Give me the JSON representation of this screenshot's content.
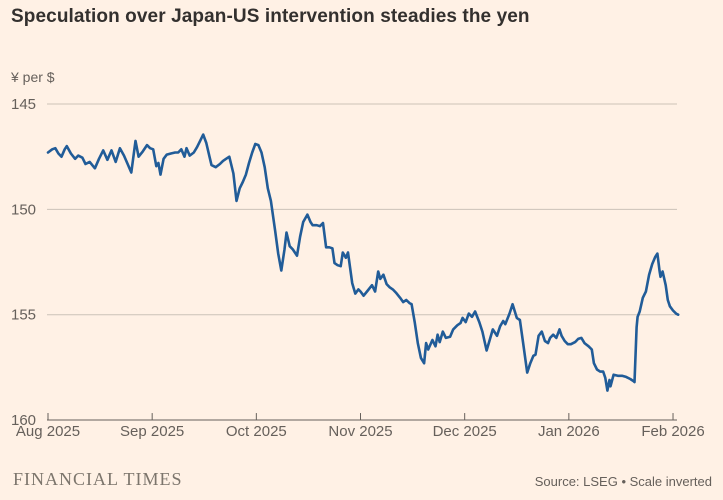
{
  "page": {
    "background": "#FFF1E5"
  },
  "header": {
    "title": "Speculation over Japan-US intervention steadies the yen"
  },
  "footer": {
    "brand": "FINANCIAL TIMES",
    "source": "Source: LSEG • Scale inverted"
  },
  "colors": {
    "background": "#FFF1E5",
    "line": "#215C98",
    "gridline": "#CCC2B8",
    "axis": "#66605B",
    "tick_label": "#66605B",
    "title": "#33302E"
  },
  "chart_data": {
    "type": "line",
    "title": "Speculation over Japan-US intervention steadies the yen",
    "unit_label": "¥ per $",
    "xlabel": "",
    "ylabel": "¥ per $",
    "x_tick_labels": [
      "Aug 2025",
      "Sep 2025",
      "Oct 2025",
      "Nov 2025",
      "Dec 2025",
      "Jan 2026",
      "Feb 2026"
    ],
    "y_ticks": [
      145,
      150,
      155,
      160
    ],
    "ylim": [
      145,
      160
    ],
    "y_inverted": true,
    "xlim_months": [
      0,
      6.05
    ],
    "grid": "horizontal",
    "legend": "none",
    "series": [
      {
        "name": "Yen per US dollar",
        "points": [
          [
            0.0,
            147.3
          ],
          [
            0.04,
            147.15
          ],
          [
            0.07,
            147.1
          ],
          [
            0.1,
            147.35
          ],
          [
            0.13,
            147.5
          ],
          [
            0.16,
            147.15
          ],
          [
            0.18,
            147.0
          ],
          [
            0.22,
            147.35
          ],
          [
            0.26,
            147.6
          ],
          [
            0.29,
            147.45
          ],
          [
            0.33,
            147.55
          ],
          [
            0.36,
            147.85
          ],
          [
            0.4,
            147.75
          ],
          [
            0.45,
            148.05
          ],
          [
            0.49,
            147.6
          ],
          [
            0.53,
            147.2
          ],
          [
            0.57,
            147.65
          ],
          [
            0.61,
            147.2
          ],
          [
            0.65,
            147.75
          ],
          [
            0.69,
            147.1
          ],
          [
            0.73,
            147.45
          ],
          [
            0.76,
            147.8
          ],
          [
            0.8,
            148.25
          ],
          [
            0.84,
            146.75
          ],
          [
            0.87,
            147.5
          ],
          [
            0.91,
            147.25
          ],
          [
            0.95,
            146.95
          ],
          [
            0.98,
            147.1
          ],
          [
            1.01,
            147.15
          ],
          [
            1.04,
            147.95
          ],
          [
            1.06,
            147.8
          ],
          [
            1.08,
            148.35
          ],
          [
            1.11,
            147.6
          ],
          [
            1.14,
            147.4
          ],
          [
            1.18,
            147.35
          ],
          [
            1.22,
            147.3
          ],
          [
            1.25,
            147.3
          ],
          [
            1.28,
            147.15
          ],
          [
            1.31,
            147.5
          ],
          [
            1.33,
            147.1
          ],
          [
            1.36,
            147.45
          ],
          [
            1.4,
            147.3
          ],
          [
            1.43,
            147.05
          ],
          [
            1.46,
            146.75
          ],
          [
            1.49,
            146.45
          ],
          [
            1.52,
            146.85
          ],
          [
            1.55,
            147.5
          ],
          [
            1.57,
            147.9
          ],
          [
            1.61,
            148.0
          ],
          [
            1.65,
            147.85
          ],
          [
            1.68,
            147.7
          ],
          [
            1.71,
            147.6
          ],
          [
            1.74,
            147.5
          ],
          [
            1.78,
            148.3
          ],
          [
            1.81,
            149.6
          ],
          [
            1.84,
            149.0
          ],
          [
            1.87,
            148.7
          ],
          [
            1.9,
            148.35
          ],
          [
            1.93,
            147.8
          ],
          [
            1.96,
            147.3
          ],
          [
            1.99,
            146.9
          ],
          [
            2.02,
            146.95
          ],
          [
            2.05,
            147.3
          ],
          [
            2.08,
            148.0
          ],
          [
            2.11,
            149.0
          ],
          [
            2.14,
            149.6
          ],
          [
            2.18,
            151.0
          ],
          [
            2.21,
            152.1
          ],
          [
            2.24,
            152.9
          ],
          [
            2.27,
            151.9
          ],
          [
            2.29,
            151.1
          ],
          [
            2.32,
            151.75
          ],
          [
            2.35,
            151.9
          ],
          [
            2.39,
            152.2
          ],
          [
            2.42,
            151.3
          ],
          [
            2.45,
            150.6
          ],
          [
            2.49,
            150.25
          ],
          [
            2.52,
            150.6
          ],
          [
            2.54,
            150.75
          ],
          [
            2.58,
            150.75
          ],
          [
            2.61,
            150.8
          ],
          [
            2.64,
            150.65
          ],
          [
            2.67,
            151.8
          ],
          [
            2.7,
            151.8
          ],
          [
            2.73,
            151.85
          ],
          [
            2.75,
            152.55
          ],
          [
            2.78,
            152.65
          ],
          [
            2.81,
            152.7
          ],
          [
            2.83,
            152.05
          ],
          [
            2.86,
            152.3
          ],
          [
            2.88,
            152.05
          ],
          [
            2.92,
            153.5
          ],
          [
            2.95,
            154.0
          ],
          [
            2.98,
            153.8
          ],
          [
            3.0,
            153.9
          ],
          [
            3.03,
            154.1
          ],
          [
            3.07,
            153.85
          ],
          [
            3.11,
            153.6
          ],
          [
            3.14,
            153.9
          ],
          [
            3.17,
            152.95
          ],
          [
            3.19,
            153.3
          ],
          [
            3.22,
            153.1
          ],
          [
            3.25,
            153.55
          ],
          [
            3.28,
            153.7
          ],
          [
            3.31,
            153.8
          ],
          [
            3.34,
            153.95
          ],
          [
            3.38,
            154.2
          ],
          [
            3.41,
            154.4
          ],
          [
            3.44,
            154.3
          ],
          [
            3.47,
            154.45
          ],
          [
            3.49,
            154.5
          ],
          [
            3.52,
            155.35
          ],
          [
            3.55,
            156.35
          ],
          [
            3.58,
            157.05
          ],
          [
            3.61,
            157.3
          ],
          [
            3.63,
            156.35
          ],
          [
            3.65,
            156.65
          ],
          [
            3.69,
            156.2
          ],
          [
            3.72,
            156.5
          ],
          [
            3.74,
            155.95
          ],
          [
            3.76,
            156.3
          ],
          [
            3.79,
            155.8
          ],
          [
            3.82,
            156.1
          ],
          [
            3.86,
            156.05
          ],
          [
            3.89,
            155.7
          ],
          [
            3.93,
            155.5
          ],
          [
            3.96,
            155.4
          ],
          [
            3.98,
            155.15
          ],
          [
            4.01,
            155.35
          ],
          [
            4.04,
            154.95
          ],
          [
            4.07,
            155.1
          ],
          [
            4.1,
            154.85
          ],
          [
            4.14,
            155.35
          ],
          [
            4.17,
            155.8
          ],
          [
            4.21,
            156.7
          ],
          [
            4.24,
            156.2
          ],
          [
            4.27,
            155.7
          ],
          [
            4.31,
            156.0
          ],
          [
            4.34,
            155.55
          ],
          [
            4.37,
            155.3
          ],
          [
            4.39,
            155.45
          ],
          [
            4.43,
            154.95
          ],
          [
            4.46,
            154.5
          ],
          [
            4.5,
            155.15
          ],
          [
            4.53,
            155.25
          ],
          [
            4.56,
            156.3
          ],
          [
            4.6,
            157.75
          ],
          [
            4.63,
            157.3
          ],
          [
            4.66,
            156.95
          ],
          [
            4.68,
            156.9
          ],
          [
            4.71,
            156.0
          ],
          [
            4.74,
            155.8
          ],
          [
            4.77,
            156.25
          ],
          [
            4.8,
            156.35
          ],
          [
            4.82,
            156.1
          ],
          [
            4.85,
            155.95
          ],
          [
            4.88,
            156.1
          ],
          [
            4.91,
            155.7
          ],
          [
            4.93,
            156.0
          ],
          [
            4.96,
            156.25
          ],
          [
            4.99,
            156.4
          ],
          [
            5.02,
            156.4
          ],
          [
            5.06,
            156.3
          ],
          [
            5.09,
            156.15
          ],
          [
            5.12,
            156.1
          ],
          [
            5.15,
            156.35
          ],
          [
            5.19,
            156.5
          ],
          [
            5.22,
            156.65
          ],
          [
            5.24,
            157.3
          ],
          [
            5.27,
            157.6
          ],
          [
            5.3,
            157.7
          ],
          [
            5.33,
            157.7
          ],
          [
            5.35,
            158.0
          ],
          [
            5.37,
            158.6
          ],
          [
            5.39,
            158.1
          ],
          [
            5.4,
            158.4
          ],
          [
            5.43,
            157.85
          ],
          [
            5.47,
            157.9
          ],
          [
            5.51,
            157.9
          ],
          [
            5.55,
            157.95
          ],
          [
            5.59,
            158.05
          ],
          [
            5.62,
            158.15
          ],
          [
            5.63,
            158.2
          ],
          [
            5.65,
            155.6
          ],
          [
            5.66,
            155.1
          ],
          [
            5.68,
            154.85
          ],
          [
            5.71,
            154.2
          ],
          [
            5.74,
            153.9
          ],
          [
            5.77,
            153.1
          ],
          [
            5.8,
            152.6
          ],
          [
            5.83,
            152.25
          ],
          [
            5.85,
            152.1
          ],
          [
            5.87,
            152.9
          ],
          [
            5.88,
            153.2
          ],
          [
            5.9,
            152.95
          ],
          [
            5.93,
            153.6
          ],
          [
            5.95,
            154.3
          ],
          [
            5.97,
            154.6
          ],
          [
            6.0,
            154.8
          ],
          [
            6.03,
            154.95
          ],
          [
            6.05,
            155.0
          ]
        ]
      }
    ]
  }
}
